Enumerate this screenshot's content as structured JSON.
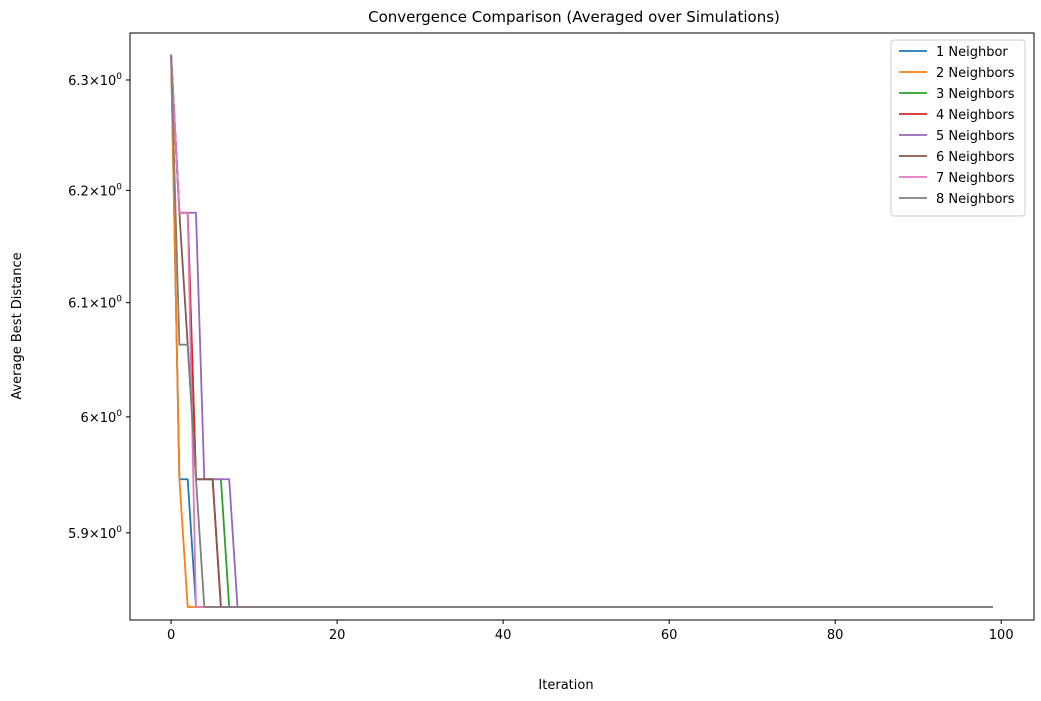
{
  "chart_data": {
    "type": "line",
    "title": "Convergence Comparison (Averaged over Simulations)",
    "xlabel": "Iteration",
    "ylabel": "Average Best Distance",
    "yscale": "log",
    "xlim": [
      -4.95,
      103.95
    ],
    "ylim": [
      5.826,
      6.343
    ],
    "x_ticks": [
      0,
      20,
      40,
      60,
      80,
      100
    ],
    "x_tick_labels": [
      "0",
      "20",
      "40",
      "60",
      "80",
      "100"
    ],
    "y_ticks": [
      5.9,
      6.0,
      6.1,
      6.2,
      6.3
    ],
    "y_tick_labels": [
      {
        "base": "5.9",
        "exp": "0"
      },
      {
        "base": "6",
        "exp": "0"
      },
      {
        "base": "6.1",
        "exp": "0"
      },
      {
        "base": "6.2",
        "exp": "0"
      },
      {
        "base": "6.3",
        "exp": "0"
      }
    ],
    "grid": false,
    "legend_position": "top-right",
    "x_max": 99,
    "series": [
      {
        "name": "1 Neighbor",
        "color": "#1f77b4",
        "points": [
          [
            0,
            6.323
          ],
          [
            1,
            5.946
          ],
          [
            2,
            5.946
          ],
          [
            3,
            5.837
          ]
        ]
      },
      {
        "name": "2 Neighbors",
        "color": "#ff7f0e",
        "points": [
          [
            0,
            6.323
          ],
          [
            1,
            5.946
          ],
          [
            2,
            5.837
          ]
        ]
      },
      {
        "name": "3 Neighbors",
        "color": "#2ca02c",
        "points": [
          [
            0,
            6.323
          ],
          [
            1,
            6.18
          ],
          [
            2,
            6.18
          ],
          [
            3,
            5.946
          ],
          [
            4,
            5.946
          ],
          [
            5,
            5.946
          ],
          [
            6,
            5.946
          ],
          [
            7,
            5.837
          ]
        ]
      },
      {
        "name": "4 Neighbors",
        "color": "#d62728",
        "points": [
          [
            0,
            6.323
          ],
          [
            1,
            6.18
          ],
          [
            2,
            6.18
          ],
          [
            3,
            5.946
          ],
          [
            4,
            5.946
          ],
          [
            5,
            5.946
          ],
          [
            6,
            5.837
          ]
        ]
      },
      {
        "name": "5 Neighbors",
        "color": "#9467bd",
        "points": [
          [
            0,
            6.323
          ],
          [
            1,
            6.18
          ],
          [
            2,
            6.18
          ],
          [
            3,
            6.18
          ],
          [
            4,
            5.946
          ],
          [
            5,
            5.946
          ],
          [
            6,
            5.946
          ],
          [
            7,
            5.946
          ],
          [
            8,
            5.837
          ]
        ]
      },
      {
        "name": "6 Neighbors",
        "color": "#8c564b",
        "points": [
          [
            0,
            6.323
          ],
          [
            1,
            6.18
          ],
          [
            2,
            6.063
          ],
          [
            3,
            5.946
          ],
          [
            4,
            5.946
          ],
          [
            5,
            5.946
          ],
          [
            6,
            5.837
          ]
        ]
      },
      {
        "name": "7 Neighbors",
        "color": "#e377c2",
        "points": [
          [
            0,
            6.323
          ],
          [
            1,
            6.18
          ],
          [
            2,
            6.18
          ],
          [
            3,
            5.837
          ]
        ]
      },
      {
        "name": "8 Neighbors",
        "color": "#7f7f7f",
        "points": [
          [
            0,
            6.323
          ],
          [
            1,
            6.063
          ],
          [
            2,
            6.063
          ],
          [
            3,
            5.946
          ],
          [
            4,
            5.837
          ]
        ]
      }
    ]
  }
}
